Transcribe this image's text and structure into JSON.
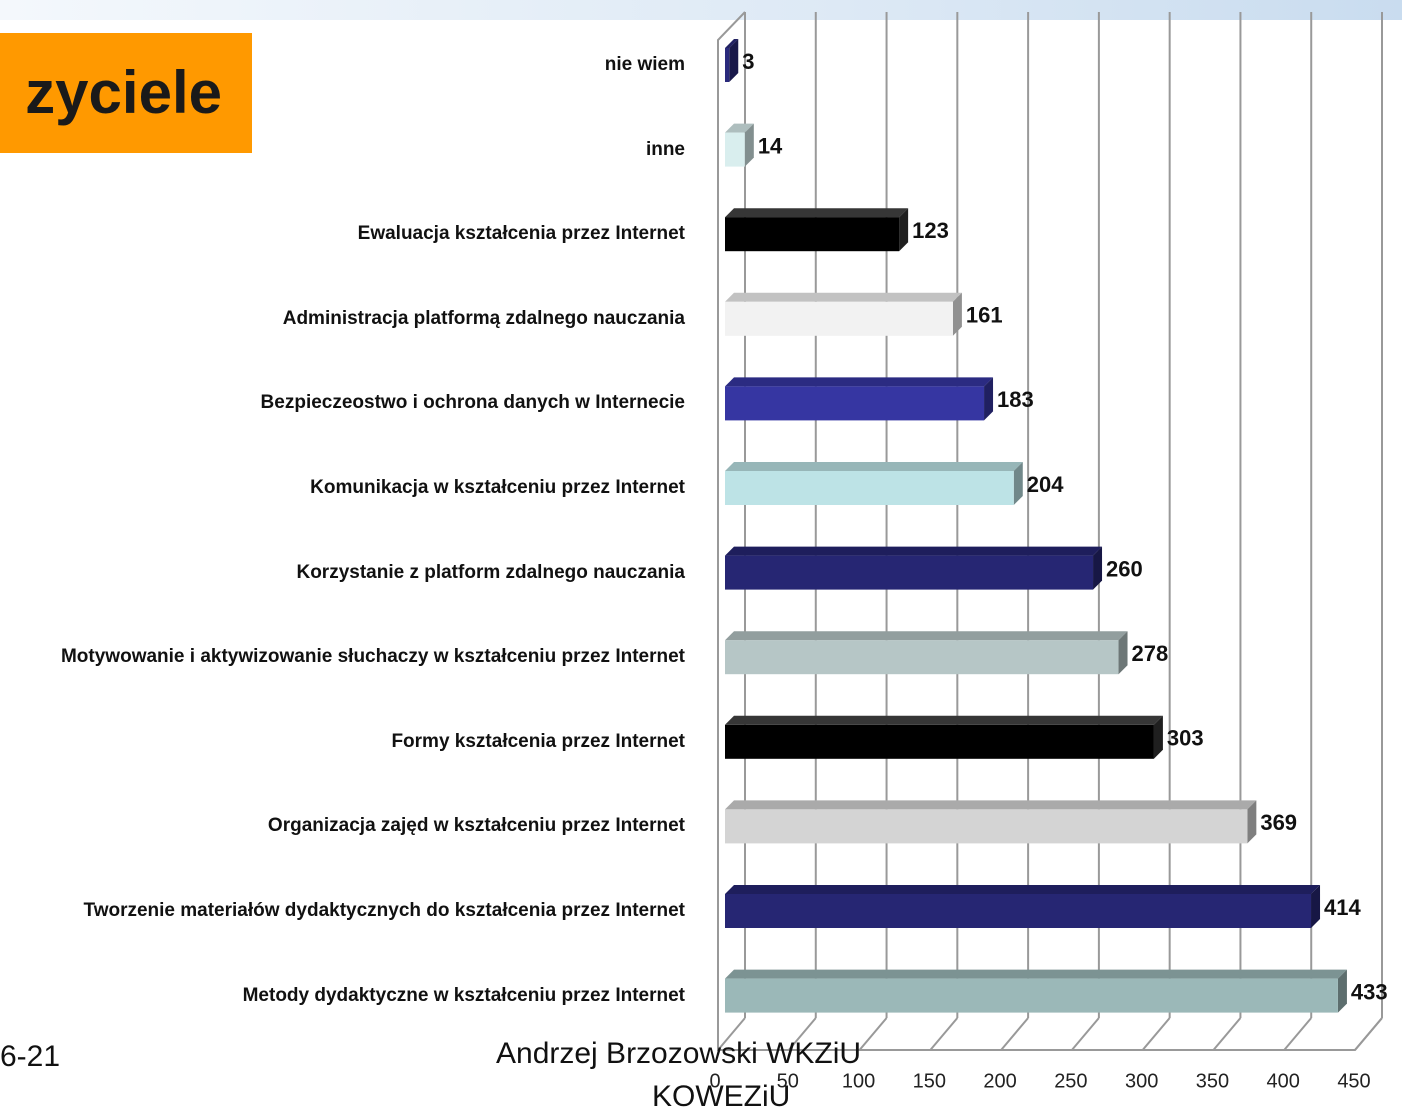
{
  "chart_data": {
    "type": "bar",
    "title": "zyciele",
    "categories": [
      "nie wiem",
      "inne",
      "Ewaluacja kształcenia przez Internet",
      "Administracja platformą zdalnego nauczania",
      "Bezpieczeostwo i ochrona danych w Internecie",
      "Komunikacja w kształceniu przez Internet",
      "Korzystanie z platform zdalnego nauczania",
      "Motywowanie i aktywizowanie słuchaczy w kształceniu przez Internet",
      "Formy kształcenia przez Internet",
      "Organizacja zajęd w kształceniu przez Internet",
      "Tworzenie materiałów dydaktycznych do kształcenia przez Internet",
      "Metody dydaktyczne w kształceniu przez Internet"
    ],
    "values": [
      3,
      14,
      123,
      161,
      183,
      204,
      260,
      278,
      303,
      369,
      414,
      433
    ],
    "colors": [
      "#2a2a7c",
      "#d9eeee",
      "#000000",
      "#f2f2f2",
      "#3636a2",
      "#bde3e6",
      "#262673",
      "#b6c6c6",
      "#000000",
      "#d4d4d4",
      "#262673",
      "#9bb8b8"
    ],
    "xlim": [
      0,
      450
    ],
    "xticks": [
      0,
      50,
      100,
      150,
      200,
      250,
      300,
      350,
      400,
      450
    ],
    "grid": true
  },
  "footer": {
    "date": "6-21",
    "author": "Andrzej Brzozowski WKZiU",
    "org": "KOWEZiU"
  }
}
